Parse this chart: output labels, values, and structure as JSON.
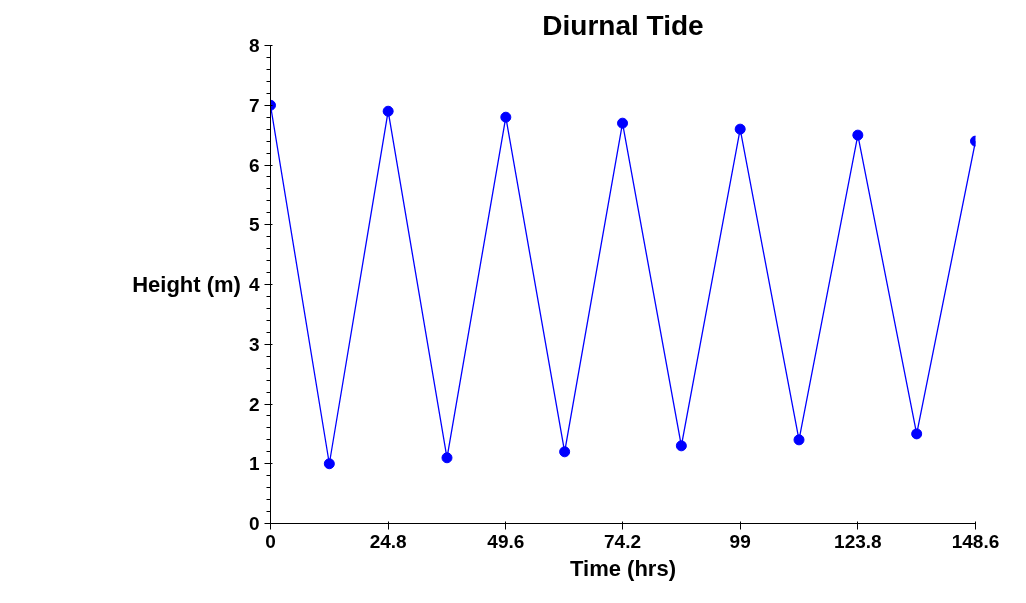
{
  "chart_data": {
    "type": "line",
    "title": "Diurnal Tide",
    "xlabel": "Time (hrs)",
    "ylabel": "Height (m)",
    "x": [
      0,
      12.4,
      24.8,
      37.2,
      49.6,
      62.0,
      74.2,
      86.6,
      99,
      111.4,
      123.8,
      136.2,
      148.6
    ],
    "series": [
      {
        "color": "#0000ff",
        "values": [
          7.0,
          1.0,
          6.9,
          1.1,
          6.8,
          1.2,
          6.7,
          1.3,
          6.6,
          1.4,
          6.5,
          1.5,
          6.4
        ]
      }
    ],
    "xlim": [
      0,
      148.6
    ],
    "ylim": [
      0,
      8
    ],
    "xticks": [
      0,
      24.8,
      49.6,
      74.2,
      99,
      123.8,
      148.6
    ],
    "yticks": [
      0,
      1,
      2,
      3,
      4,
      5,
      6,
      7,
      8
    ],
    "grid": false,
    "marker": "circle",
    "line_style": "solid"
  }
}
